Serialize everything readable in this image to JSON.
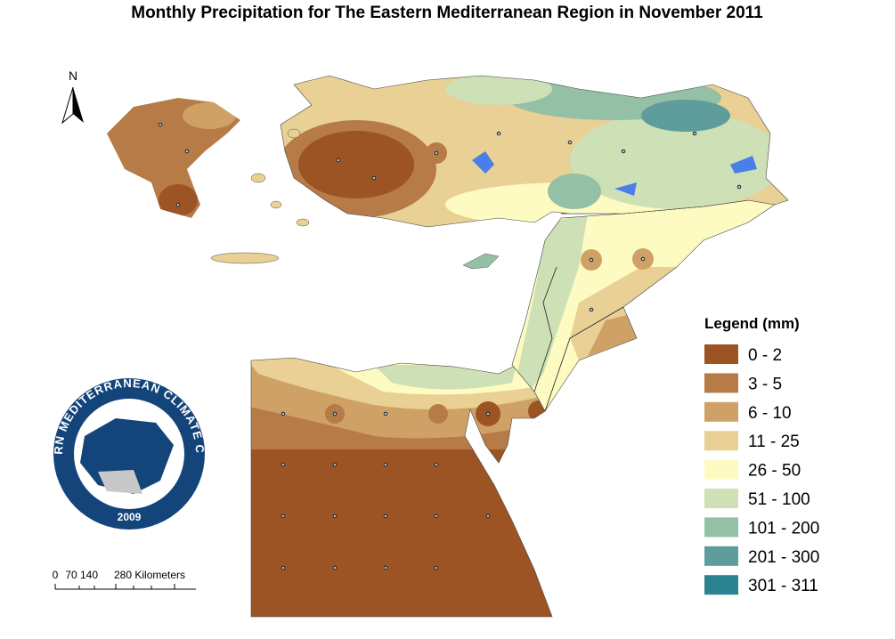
{
  "title": "Monthly Precipitation for The Eastern Mediterranean Region in November 2011",
  "north_arrow": "N",
  "legend": {
    "title": "Legend (mm)",
    "items": [
      {
        "label": "0 - 2",
        "color": "#9c5424"
      },
      {
        "label": "3 - 5",
        "color": "#b67b47"
      },
      {
        "label": "6 - 10",
        "color": "#d0a166"
      },
      {
        "label": "11 - 25",
        "color": "#e9d094"
      },
      {
        "label": "26 - 50",
        "color": "#fdfbc2"
      },
      {
        "label": "51 - 100",
        "color": "#cde0b6"
      },
      {
        "label": "101 - 200",
        "color": "#94c0a6"
      },
      {
        "label": "201 - 300",
        "color": "#5e9d9c"
      },
      {
        "label": "301 - 311",
        "color": "#2b8392"
      }
    ]
  },
  "logo": {
    "name": "EASTERN MEDITERRANEAN CLIMATE CENTRE",
    "year": "2009"
  },
  "scale_bar": {
    "labels": [
      "0",
      "70",
      "140",
      "280 Kilometers"
    ]
  }
}
